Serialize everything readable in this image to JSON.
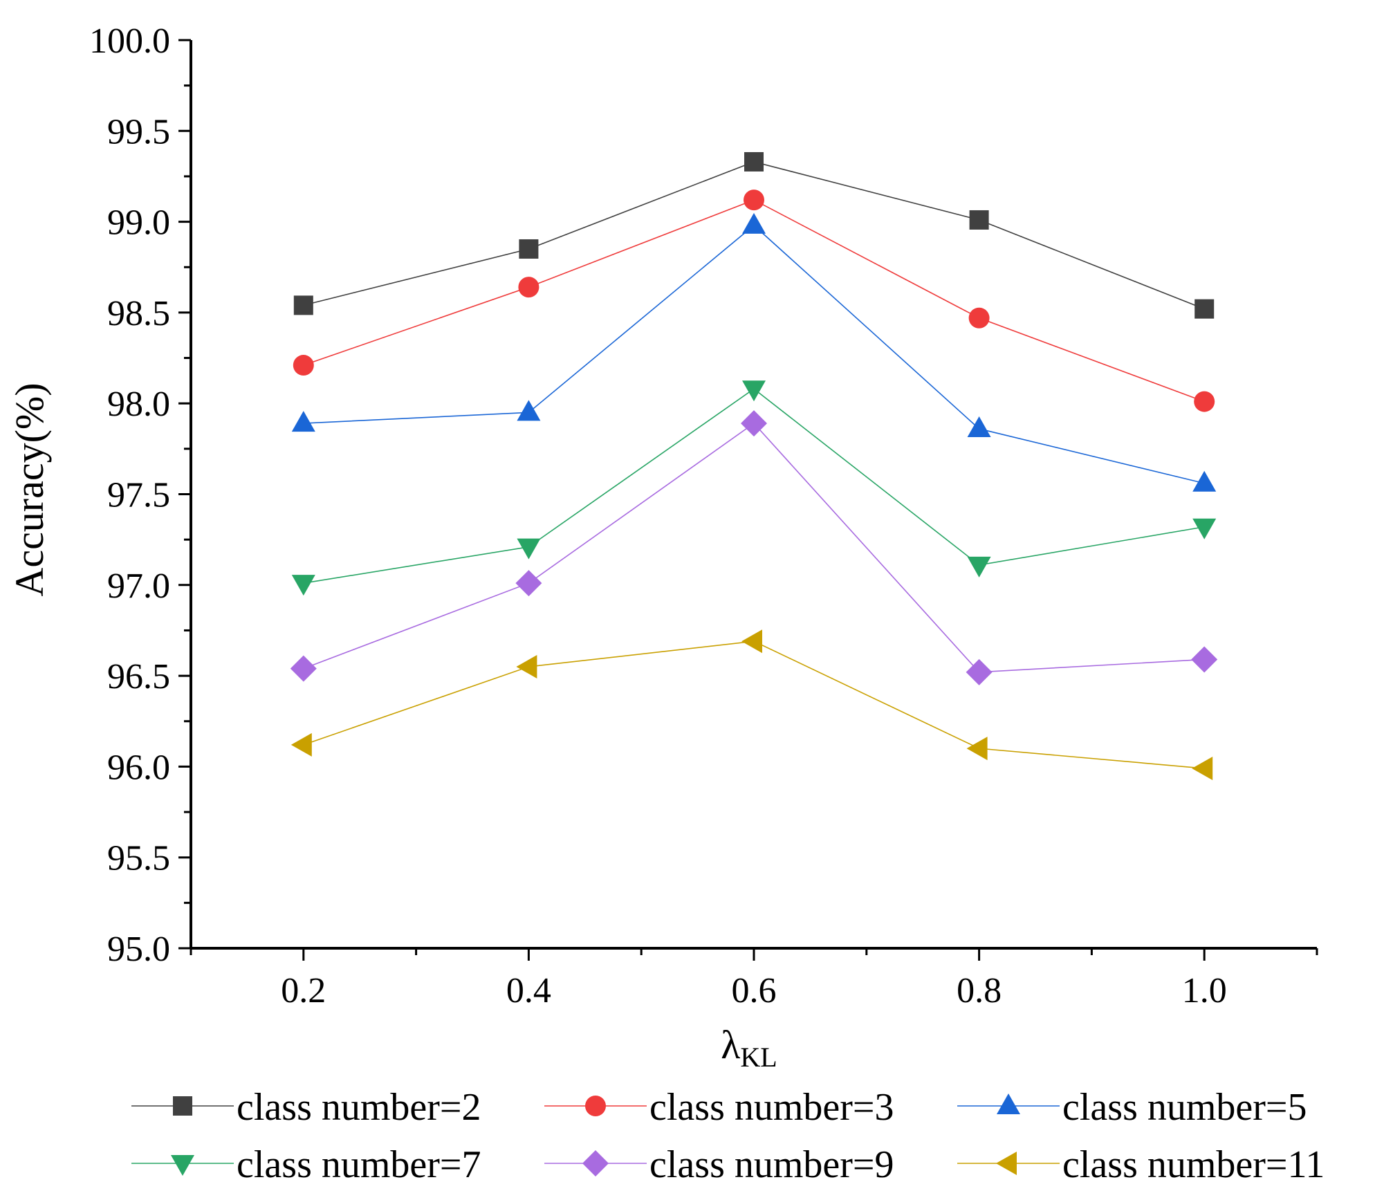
{
  "chart_data": {
    "type": "line",
    "title": "",
    "xlabel": "λ",
    "xlabel_sub": "KL",
    "ylabel": "Accuracy(%)",
    "x": [
      0.2,
      0.4,
      0.6,
      0.8,
      1.0
    ],
    "xlim": [
      0.1,
      1.1
    ],
    "ylim": [
      95.0,
      100.0
    ],
    "xticks": [
      0.2,
      0.4,
      0.6,
      0.8,
      1.0
    ],
    "xtick_labels": [
      "0.2",
      "0.4",
      "0.6",
      "0.8",
      "1.0"
    ],
    "yticks": [
      95.0,
      95.5,
      96.0,
      96.5,
      97.0,
      97.5,
      98.0,
      98.5,
      99.0,
      99.5,
      100.0
    ],
    "ytick_labels": [
      "95.0",
      "95.5",
      "96.0",
      "96.5",
      "97.0",
      "97.5",
      "98.0",
      "98.5",
      "99.0",
      "99.5",
      "100.0"
    ],
    "grid": false,
    "legend_position": "bottom",
    "series": [
      {
        "name": "class number=2",
        "color": "#404040",
        "marker": "square",
        "values": [
          98.54,
          98.85,
          99.33,
          99.01,
          98.52
        ]
      },
      {
        "name": "class number=3",
        "color": "#ef3b3b",
        "marker": "circle",
        "values": [
          98.21,
          98.64,
          99.12,
          98.47,
          98.01
        ]
      },
      {
        "name": "class number=5",
        "color": "#1a66d6",
        "marker": "triangle-up",
        "values": [
          97.89,
          97.95,
          98.98,
          97.86,
          97.56
        ]
      },
      {
        "name": "class number=7",
        "color": "#28a565",
        "marker": "triangle-down",
        "values": [
          97.01,
          97.21,
          98.08,
          97.11,
          97.32
        ]
      },
      {
        "name": "class number=9",
        "color": "#a86be0",
        "marker": "diamond",
        "values": [
          96.54,
          97.01,
          97.89,
          96.52,
          96.59
        ]
      },
      {
        "name": "class number=11",
        "color": "#c9a000",
        "marker": "triangle-left",
        "values": [
          96.12,
          96.55,
          96.69,
          96.1,
          95.99
        ]
      }
    ]
  }
}
